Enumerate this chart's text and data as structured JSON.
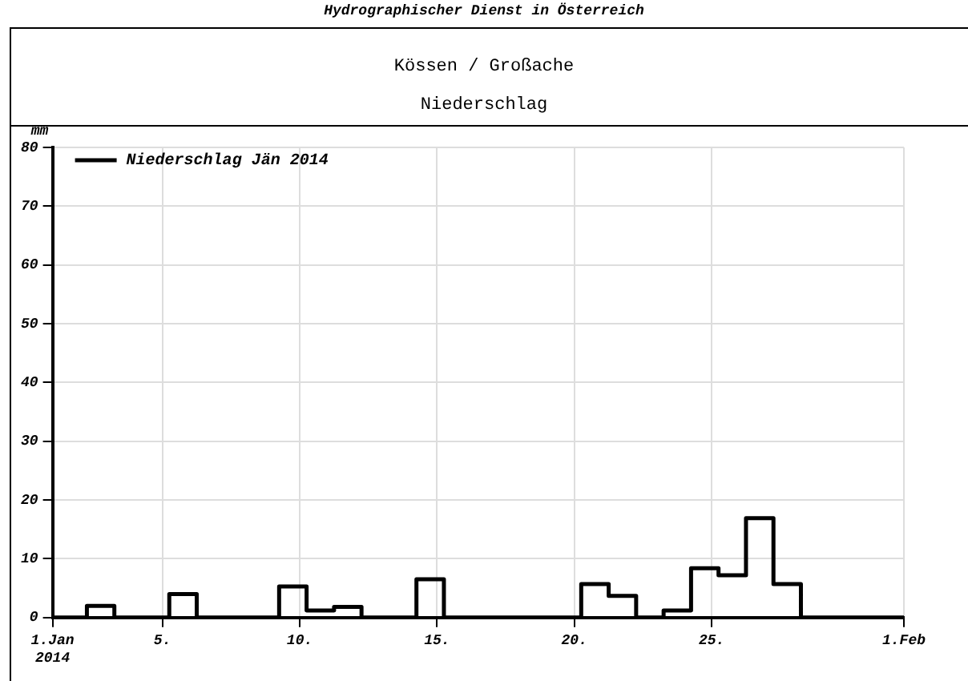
{
  "chart_data": {
    "type": "step",
    "title": "Kössen / Großache",
    "subtitle": "Niederschlag",
    "ylabel": "mm",
    "annotations": [
      "Hydrographischer Dienst in Österreich"
    ],
    "x": [
      1,
      2.25,
      3.25,
      4.25,
      5.25,
      6.25,
      7.25,
      8.25,
      9.25,
      10.25,
      11.25,
      12.25,
      13.25,
      14.25,
      15.25,
      16.25,
      17.25,
      18.25,
      19.25,
      20.25,
      21.25,
      22.25,
      23.25,
      24.25,
      25.25,
      26.25,
      27.25,
      28.25,
      29.25,
      30.25,
      31.25,
      32
    ],
    "series": [
      {
        "name": "Niederschlag Jän 2014",
        "color": "#000000",
        "values": [
          0,
          2,
          0,
          0,
          4,
          0,
          0,
          0,
          5.3,
          1.2,
          1.8,
          0,
          0,
          6.5,
          0,
          0,
          0,
          0,
          0,
          5.7,
          3.7,
          0,
          1.2,
          8.4,
          7.2,
          16.9,
          5.7,
          0,
          0,
          0,
          0,
          0
        ]
      }
    ],
    "xlim": [
      1,
      32
    ],
    "xticks": [
      {
        "value": 1,
        "label": "1.Jan\n2014"
      },
      {
        "value": 5,
        "label": "5."
      },
      {
        "value": 10,
        "label": "10."
      },
      {
        "value": 15,
        "label": "15."
      },
      {
        "value": 20,
        "label": "20."
      },
      {
        "value": 25,
        "label": "25."
      },
      {
        "value": 32,
        "label": "1.Feb"
      }
    ],
    "ylim": [
      0,
      80
    ],
    "yticks": [
      0,
      10,
      20,
      30,
      40,
      50,
      60,
      70,
      80
    ],
    "grid": true,
    "legend": "top left",
    "line_style": "solid",
    "marker": "none"
  }
}
